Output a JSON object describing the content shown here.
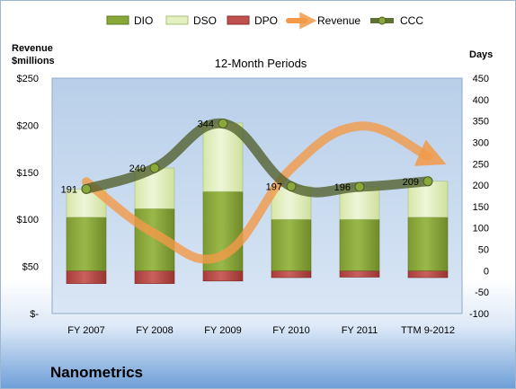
{
  "company": "Nanometrics",
  "chart_data": {
    "type": "bar",
    "title": "12-Month Periods",
    "categories": [
      "FY 2007",
      "FY 2008",
      "FY 2009",
      "FY 2010",
      "FY 2011",
      "TTM 9-2012"
    ],
    "y_left": {
      "label_line1": "Revenue",
      "label_line2": "$millions",
      "range": [
        0,
        250
      ],
      "ticks": [
        "$-",
        "$50",
        "$100",
        "$150",
        "$200",
        "$250"
      ]
    },
    "y_right": {
      "label": "Days",
      "range": [
        -100,
        450
      ],
      "ticks": [
        "-100",
        "-50",
        "0",
        "50",
        "100",
        "150",
        "200",
        "250",
        "300",
        "350",
        "400",
        "450"
      ]
    },
    "legend": {
      "placement": "top",
      "items": [
        "DIO",
        "DSO",
        "DPO",
        "Revenue",
        "CCC"
      ]
    },
    "series": [
      {
        "name": "DIO",
        "axis": "right",
        "type": "stacked-bar",
        "color": "#8aa83a",
        "values": [
          125,
          145,
          185,
          120,
          120,
          125
        ]
      },
      {
        "name": "DSO",
        "axis": "right",
        "type": "stacked-bar",
        "color": "#e3f0c1",
        "values": [
          65,
          95,
          160,
          77,
          76,
          84
        ]
      },
      {
        "name": "DPO",
        "axis": "right",
        "type": "negative-bar",
        "color": "#c0504d",
        "values": [
          -30,
          -30,
          -24,
          -16,
          -15,
          -16
        ]
      },
      {
        "name": "Revenue",
        "axis": "left",
        "type": "line",
        "color": "#f29a48",
        "values": [
          140,
          85,
          62,
          154,
          199,
          167
        ]
      },
      {
        "name": "CCC",
        "axis": "right",
        "type": "line",
        "color": "#6a7d3a",
        "values": [
          191,
          240,
          344,
          197,
          196,
          209
        ],
        "labels": [
          "191",
          "240",
          "344",
          "197",
          "196",
          "209"
        ]
      }
    ],
    "grid": false
  }
}
